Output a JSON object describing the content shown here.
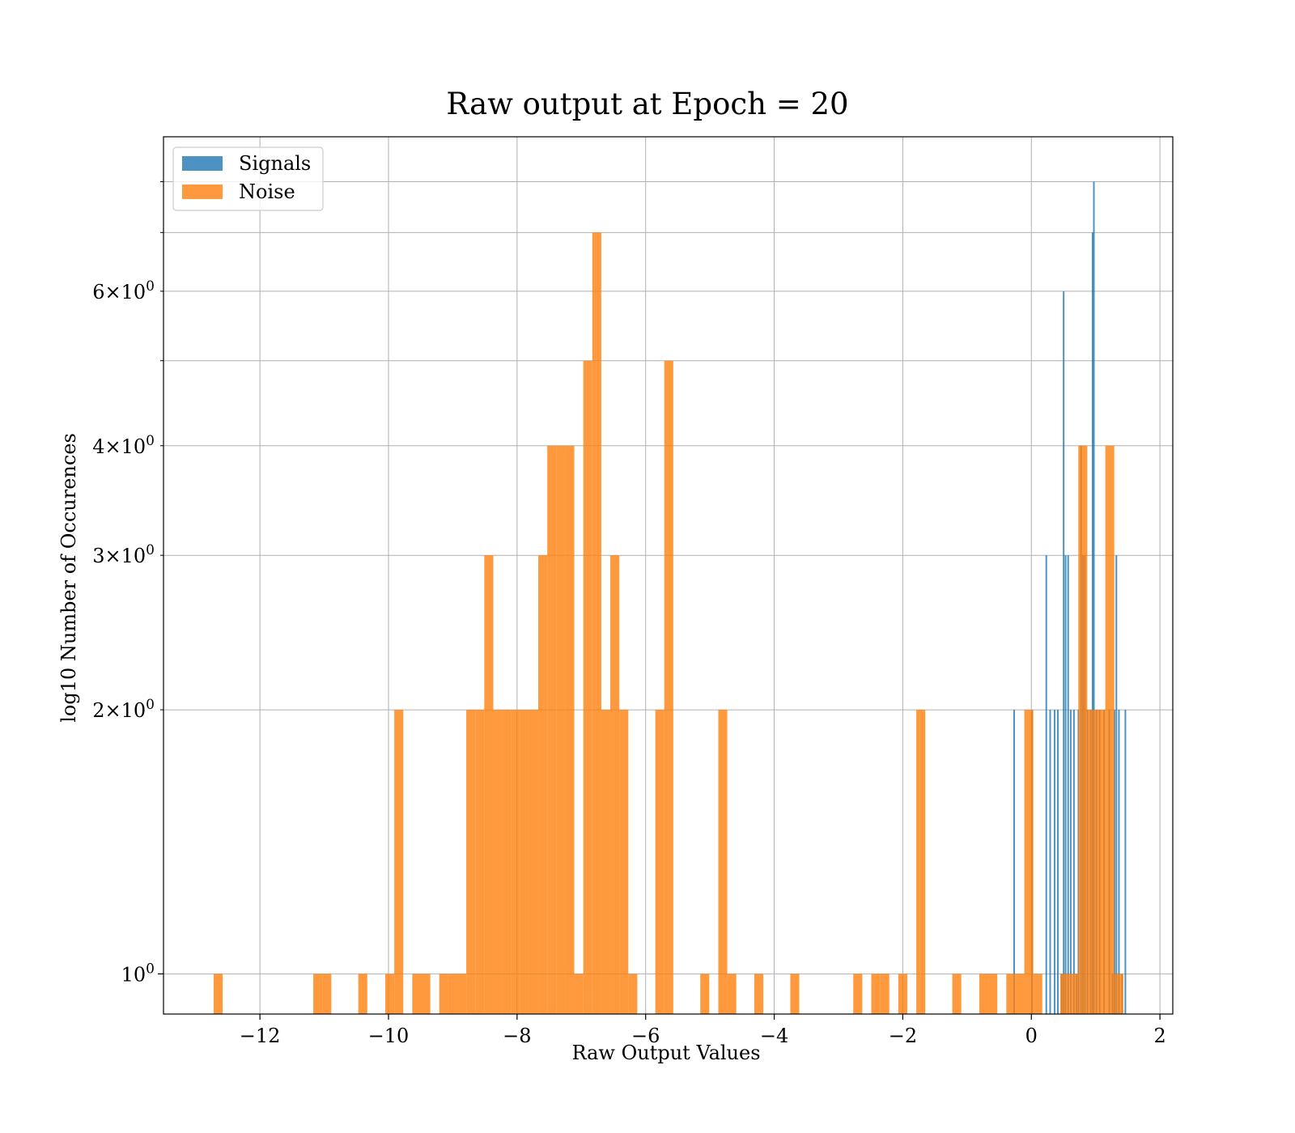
{
  "chart_data": {
    "type": "bar",
    "subtype": "histogram",
    "title": "Raw output at Epoch = 20",
    "xlabel": "Raw Output Values",
    "ylabel": "log10 Number of Occurences",
    "xlim": [
      -13.5,
      2.2
    ],
    "ylim": [
      0.9,
      9.0
    ],
    "yscale": "log",
    "grid": true,
    "legend_position": "top-left",
    "x_ticks": [
      -12,
      -10,
      -8,
      -6,
      -4,
      -2,
      0,
      2
    ],
    "x_tick_labels": [
      "−12",
      "−10",
      "−8",
      "−6",
      "−4",
      "−2",
      "0",
      "2"
    ],
    "y_major_ticks": [
      {
        "value": 1,
        "base": "10",
        "exp": "0"
      }
    ],
    "y_labeled_minor_ticks": [
      {
        "value": 2,
        "mant": "2",
        "base": "10",
        "exp": "0"
      },
      {
        "value": 3,
        "mant": "3",
        "base": "10",
        "exp": "0"
      },
      {
        "value": 4,
        "mant": "4",
        "base": "10",
        "exp": "0"
      },
      {
        "value": 6,
        "mant": "6",
        "base": "10",
        "exp": "0"
      }
    ],
    "y_unlabeled_minor_ticks": [
      5,
      7,
      8
    ],
    "series": [
      {
        "name": "Signals",
        "color": "#1f77b4",
        "opacity": 0.8,
        "bin_width": 0.025,
        "bins": [
          [
            -0.28,
            2
          ],
          [
            0.0,
            2
          ],
          [
            0.22,
            3
          ],
          [
            0.28,
            2
          ],
          [
            0.35,
            2
          ],
          [
            0.4,
            2
          ],
          [
            0.46,
            1
          ],
          [
            0.49,
            6
          ],
          [
            0.52,
            3
          ],
          [
            0.56,
            3
          ],
          [
            0.6,
            2
          ],
          [
            0.65,
            2
          ],
          [
            0.69,
            1
          ],
          [
            0.72,
            2
          ],
          [
            0.76,
            4
          ],
          [
            0.79,
            3
          ],
          [
            0.82,
            3
          ],
          [
            0.86,
            2
          ],
          [
            0.91,
            2
          ],
          [
            0.94,
            7
          ],
          [
            0.96,
            8
          ],
          [
            1.0,
            2
          ],
          [
            1.05,
            2
          ],
          [
            1.12,
            2
          ],
          [
            1.2,
            2
          ],
          [
            1.25,
            1
          ],
          [
            1.28,
            2
          ],
          [
            1.31,
            3
          ],
          [
            1.35,
            2
          ],
          [
            1.4,
            1
          ],
          [
            1.45,
            2
          ]
        ]
      },
      {
        "name": "Noise",
        "color": "#ff7f0e",
        "opacity": 0.8,
        "bin_width": 0.14,
        "bins": [
          [
            -12.72,
            1
          ],
          [
            -11.17,
            1
          ],
          [
            -11.03,
            1
          ],
          [
            -10.47,
            1
          ],
          [
            -10.05,
            1
          ],
          [
            -9.91,
            2
          ],
          [
            -9.63,
            1
          ],
          [
            -9.49,
            1
          ],
          [
            -9.21,
            1
          ],
          [
            -9.07,
            1
          ],
          [
            -8.93,
            1
          ],
          [
            -8.79,
            2
          ],
          [
            -8.65,
            2
          ],
          [
            -8.51,
            3
          ],
          [
            -8.37,
            2
          ],
          [
            -8.23,
            2
          ],
          [
            -8.09,
            2
          ],
          [
            -7.95,
            2
          ],
          [
            -7.81,
            2
          ],
          [
            -7.67,
            3
          ],
          [
            -7.53,
            4
          ],
          [
            -7.39,
            4
          ],
          [
            -7.25,
            4
          ],
          [
            -7.11,
            1
          ],
          [
            -6.97,
            5
          ],
          [
            -6.83,
            7
          ],
          [
            -6.69,
            2
          ],
          [
            -6.55,
            3
          ],
          [
            -6.41,
            2
          ],
          [
            -6.27,
            1
          ],
          [
            -5.85,
            2
          ],
          [
            -5.71,
            5
          ],
          [
            -5.15,
            1
          ],
          [
            -4.87,
            2
          ],
          [
            -4.73,
            1
          ],
          [
            -4.31,
            1
          ],
          [
            -3.75,
            1
          ],
          [
            -2.77,
            1
          ],
          [
            -2.49,
            1
          ],
          [
            -2.35,
            1
          ],
          [
            -2.07,
            1
          ],
          [
            -1.79,
            2
          ],
          [
            -1.23,
            1
          ],
          [
            -0.81,
            1
          ],
          [
            -0.67,
            1
          ],
          [
            -0.39,
            1
          ],
          [
            -0.25,
            1
          ],
          [
            -0.11,
            2
          ],
          [
            0.03,
            1
          ],
          [
            0.45,
            1
          ],
          [
            0.59,
            1
          ],
          [
            0.73,
            4
          ],
          [
            0.87,
            2
          ],
          [
            1.01,
            2
          ],
          [
            1.15,
            4
          ],
          [
            1.29,
            1
          ]
        ]
      }
    ]
  }
}
